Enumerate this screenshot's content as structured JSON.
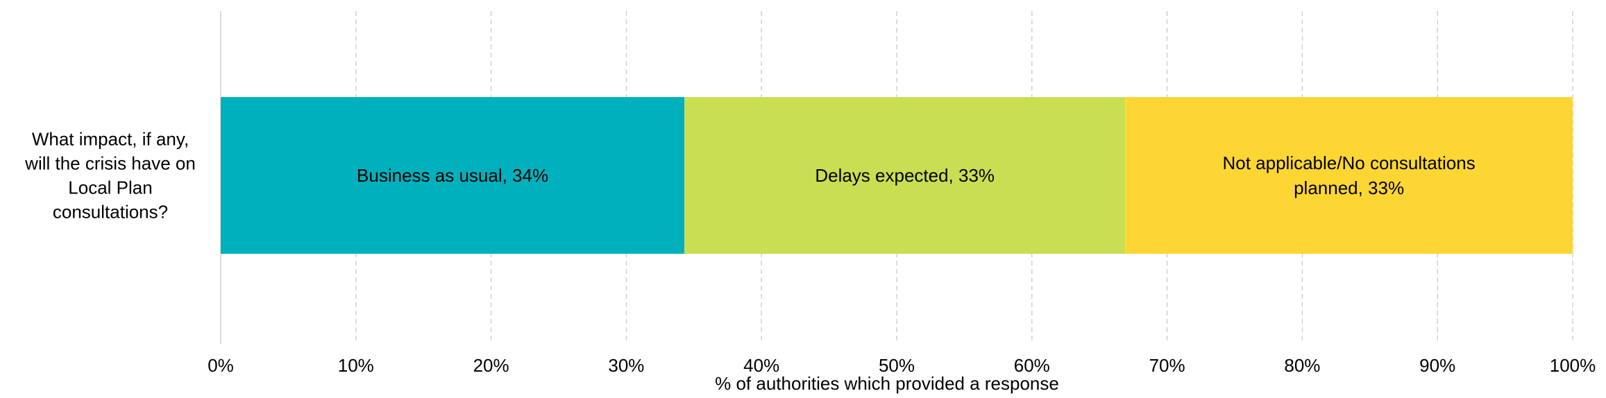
{
  "chart_data": {
    "type": "bar",
    "orientation": "horizontal-stacked",
    "categories": [
      "What impact, if any, will the crisis have on Local Plan consultations?"
    ],
    "category_label_lines": [
      "What impact, if any,",
      "will the crisis have on",
      "Local Plan",
      "consultations?"
    ],
    "series": [
      {
        "name": "Business as usual",
        "values": [
          34.3
        ],
        "data_label_lines": [
          "Business as usual, 34%"
        ],
        "color": "#00B0BC"
      },
      {
        "name": "Delays expected",
        "values": [
          32.6
        ],
        "data_label_lines": [
          "Delays expected, 33%"
        ],
        "color": "#C9DE52"
      },
      {
        "name": "Not applicable/No consultations planned",
        "values": [
          33.1
        ],
        "data_label_lines": [
          "Not applicable/No consultations",
          "planned, 33%"
        ],
        "color": "#FDD633"
      }
    ],
    "xlim": [
      0,
      100
    ],
    "xticks": [
      "0%",
      "10%",
      "20%",
      "30%",
      "40%",
      "50%",
      "60%",
      "70%",
      "80%",
      "90%",
      "100%"
    ],
    "xlabel": "% of authorities which provided a response",
    "grid": "vertical dashed",
    "legend": "none"
  }
}
